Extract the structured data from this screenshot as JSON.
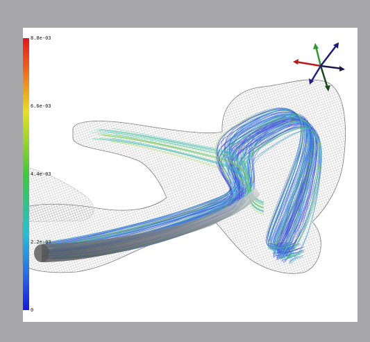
{
  "colorbar": {
    "labels": [
      "8.8e-03",
      "6.6e-03",
      "4.4e-03",
      "2.2e-03",
      "0"
    ]
  }
}
